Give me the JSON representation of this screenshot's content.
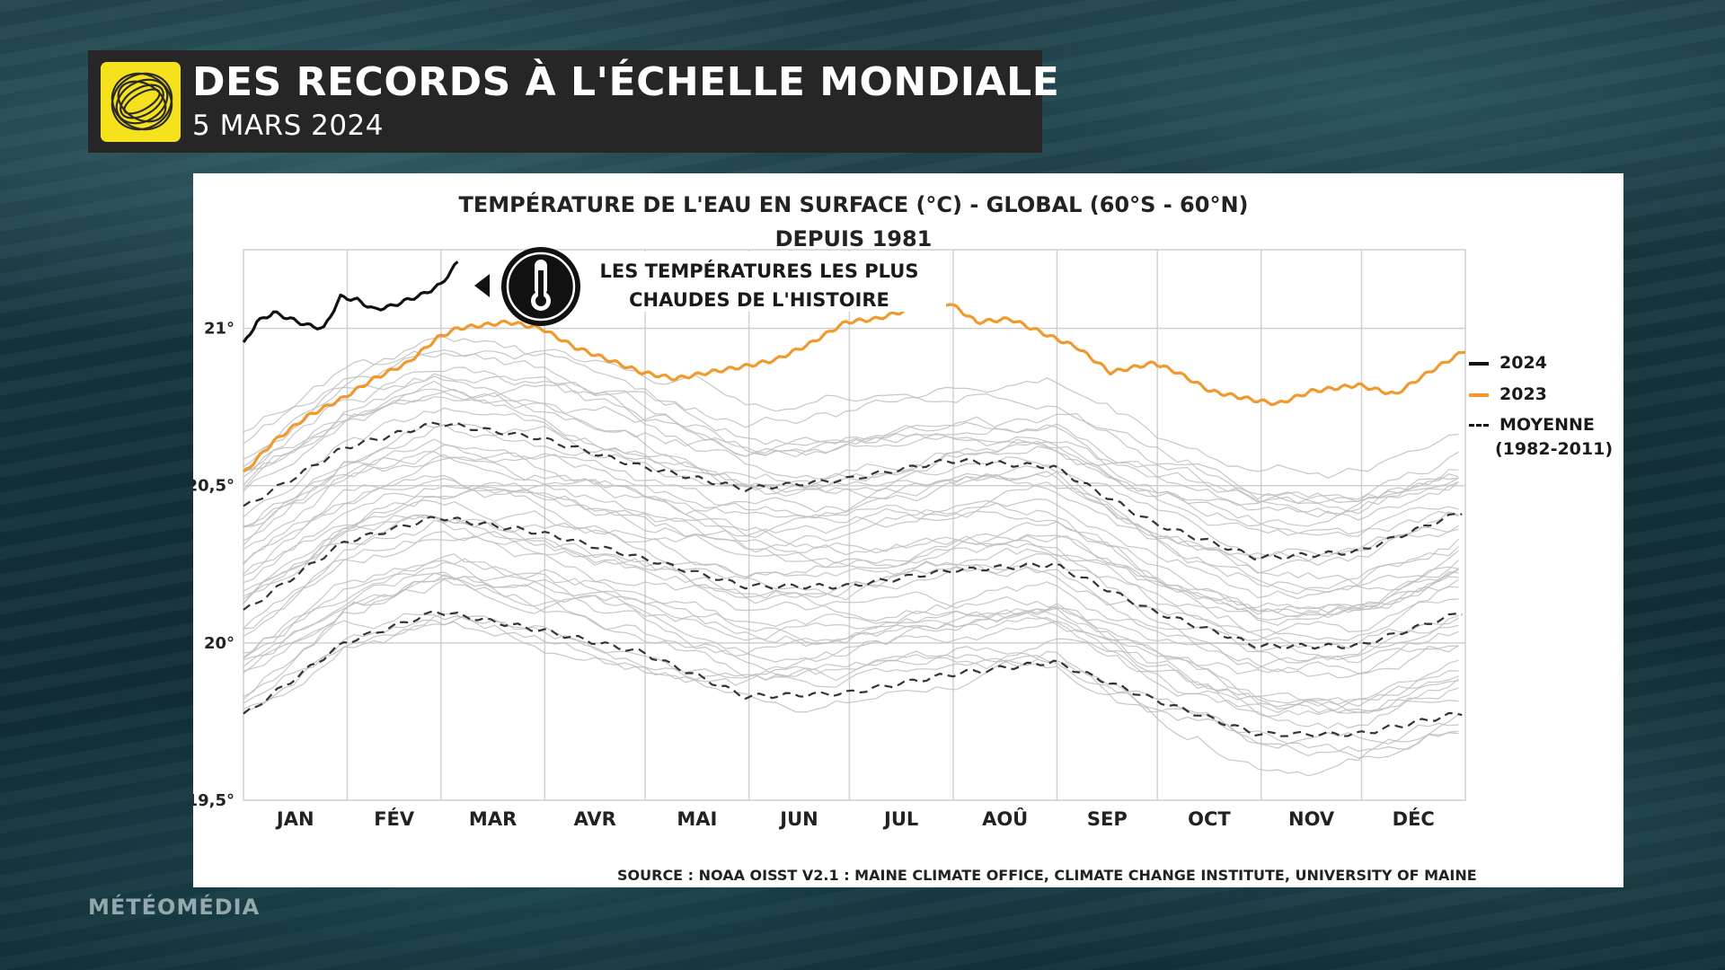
{
  "header": {
    "title": "DES RECORDS À L'ÉCHELLE MONDIALE",
    "date": "5 MARS 2024"
  },
  "brand": "MÉTÉOMÉDIA",
  "chart": {
    "title_line1": "TEMPÉRATURE DE L'EAU EN SURFACE (°C) - GLOBAL (60°S - 60°N)",
    "title_line2": "DEPUIS 1981",
    "annotation_line1": "LES TEMPÉRATURES LES PLUS",
    "annotation_line2": "CHAUDES DE L'HISTOIRE",
    "source": "SOURCE : NOAA OISST V2.1 : MAINE CLIMATE OFFICE, CLIMATE CHANGE INSTITUTE, UNIVERSITY OF MAINE",
    "legend": {
      "l2024": "2024",
      "l2023": "2023",
      "mean_line1": "MOYENNE",
      "mean_line2": "(1982-2011)"
    }
  },
  "icons": {
    "logo": "globe-swirl-logo",
    "thermometer": "thermometer-icon"
  },
  "colors": {
    "y2024": "#111111",
    "y2023": "#f09a2e",
    "history": "#bdbdbd",
    "mean": "#333333",
    "logo_bg": "#f6e21c"
  },
  "chart_data": {
    "type": "line",
    "title": "TEMPÉRATURE DE L'EAU EN SURFACE (°C) - GLOBAL (60°S - 60°N) DEPUIS 1981",
    "xlabel": "",
    "ylabel": "",
    "categories": [
      "JAN",
      "FÉV",
      "MAR",
      "AVR",
      "MAI",
      "JUN",
      "JUL",
      "AOÛ",
      "SEP",
      "OCT",
      "NOV",
      "DÉC"
    ],
    "y_ticks": [
      "19,5°",
      "20°",
      "20,5°",
      "21°"
    ],
    "ylim": [
      19.5,
      21.25
    ],
    "xlim": [
      1,
      366
    ],
    "grid": true,
    "legend_position": "right",
    "series": [
      {
        "name": "2024",
        "style": "solid",
        "x": [
          1,
          5,
          10,
          15,
          20,
          25,
          30,
          35,
          40,
          45,
          50,
          55,
          60,
          65
        ],
        "y": [
          20.95,
          21.02,
          21.05,
          21.03,
          21.01,
          21.0,
          21.1,
          21.09,
          21.06,
          21.07,
          21.09,
          21.11,
          21.14,
          21.21
        ]
      },
      {
        "name": "2023",
        "style": "solid",
        "x": [
          1,
          10,
          20,
          31,
          40,
          50,
          59,
          65,
          80,
          90,
          100,
          110,
          120,
          130,
          140,
          151,
          160,
          170,
          181,
          190,
          200,
          212,
          220,
          230,
          243,
          250,
          260,
          273,
          280,
          290,
          304,
          310,
          320,
          334,
          345,
          355,
          366
        ],
        "y": [
          20.54,
          20.64,
          20.72,
          20.78,
          20.84,
          20.89,
          20.97,
          21.0,
          21.02,
          21.0,
          20.94,
          20.9,
          20.86,
          20.84,
          20.86,
          20.88,
          20.9,
          20.95,
          21.02,
          21.03,
          21.06,
          21.08,
          21.02,
          21.03,
          20.97,
          20.94,
          20.86,
          20.89,
          20.86,
          20.8,
          20.77,
          20.76,
          20.8,
          20.82,
          20.79,
          20.86,
          20.93
        ]
      },
      {
        "name": "MOYENNE (1982-2011)",
        "style": "dashed",
        "x": [
          1,
          31,
          59,
          90,
          120,
          151,
          181,
          212,
          243,
          273,
          304,
          334,
          366
        ],
        "y": [
          20.1,
          20.32,
          20.4,
          20.35,
          20.27,
          20.18,
          20.18,
          20.23,
          20.25,
          20.1,
          19.99,
          19.99,
          20.1
        ]
      },
      {
        "name": "MOYENNE + écart",
        "style": "dashed",
        "x": [
          1,
          31,
          59,
          90,
          120,
          151,
          181,
          212,
          243,
          273,
          304,
          334,
          366
        ],
        "y": [
          20.43,
          20.62,
          20.7,
          20.65,
          20.56,
          20.49,
          20.52,
          20.58,
          20.56,
          20.38,
          20.27,
          20.29,
          20.42
        ]
      },
      {
        "name": "MOYENNE - écart",
        "style": "dashed",
        "x": [
          1,
          31,
          59,
          90,
          120,
          151,
          181,
          212,
          243,
          273,
          304,
          334,
          366
        ],
        "y": [
          19.77,
          20.0,
          20.1,
          20.04,
          19.97,
          19.83,
          19.84,
          19.9,
          19.94,
          19.82,
          19.71,
          19.71,
          19.78
        ]
      }
    ],
    "historical_years": "1981-2022"
  }
}
